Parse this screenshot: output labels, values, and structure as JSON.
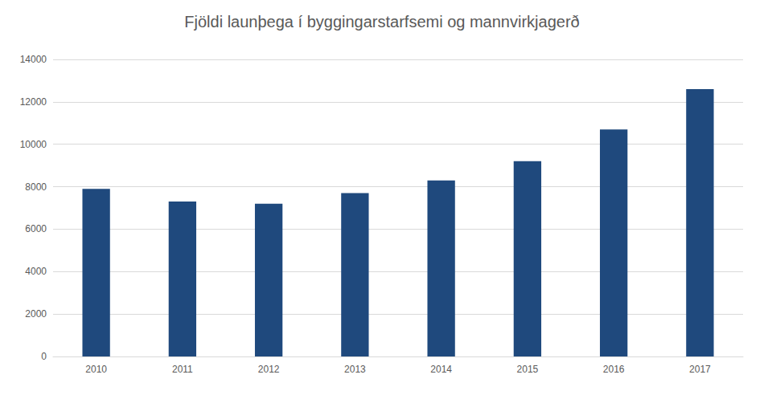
{
  "chart_data": {
    "type": "bar",
    "title": "Fjöldi launþega í byggingarstarfsemi og mannvirkjagerð",
    "categories": [
      "2010",
      "2011",
      "2012",
      "2013",
      "2014",
      "2015",
      "2016",
      "2017"
    ],
    "values": [
      7900,
      7300,
      7200,
      7700,
      8300,
      9200,
      10700,
      12600
    ],
    "color": "#1f497d",
    "ylim": [
      0,
      14000
    ],
    "yticks": [
      0,
      2000,
      4000,
      6000,
      8000,
      10000,
      12000,
      14000
    ],
    "grid": true
  }
}
